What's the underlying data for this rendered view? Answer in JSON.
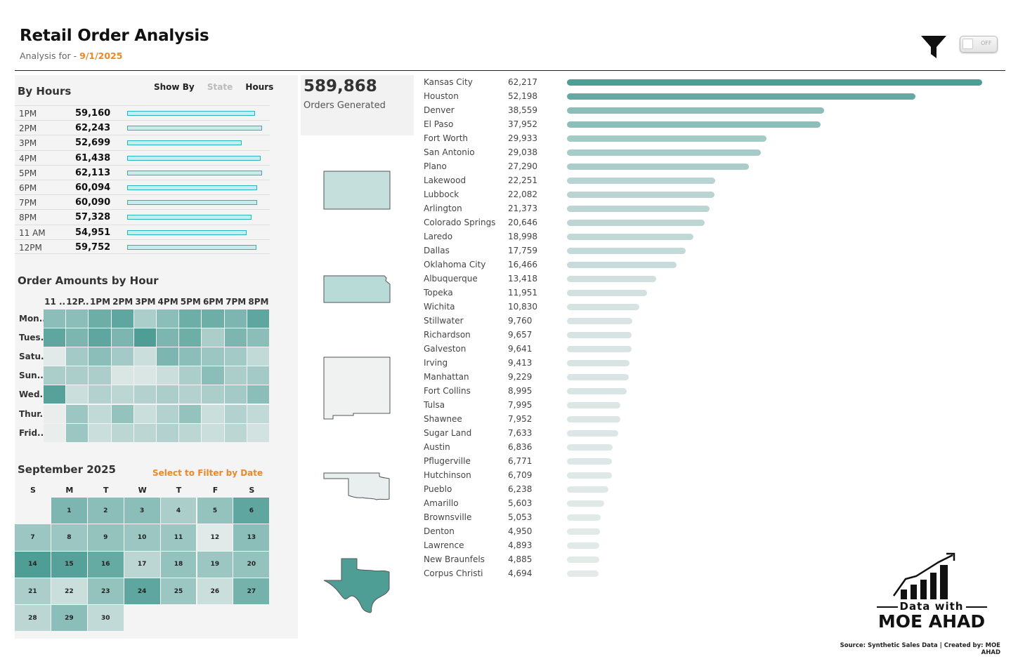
{
  "header": {
    "title": "Retail Order Analysis",
    "subtitle_prefix": "Analysis for - ",
    "date": "9/1/2025",
    "toggle_label": "OFF"
  },
  "colors": {
    "teal_dark": "#4e9e96",
    "accent_orange": "#e8892a"
  },
  "by_hours": {
    "title": "By Hours",
    "show_by_label": "Show By",
    "options": [
      "State",
      "Hours"
    ],
    "selected": "Hours",
    "max_value": 62243,
    "rows": [
      {
        "label": "1PM",
        "value": "59,160",
        "num": 59160
      },
      {
        "label": "2PM",
        "value": "62,243",
        "num": 62243
      },
      {
        "label": "3PM",
        "value": "52,699",
        "num": 52699
      },
      {
        "label": "4PM",
        "value": "61,438",
        "num": 61438
      },
      {
        "label": "5PM",
        "value": "62,113",
        "num": 62113
      },
      {
        "label": "6PM",
        "value": "60,094",
        "num": 60094
      },
      {
        "label": "7PM",
        "value": "60,090",
        "num": 60090
      },
      {
        "label": "8PM",
        "value": "57,328",
        "num": 57328
      },
      {
        "label": "11 AM",
        "value": "54,951",
        "num": 54951
      },
      {
        "label": "12PM",
        "value": "59,752",
        "num": 59752
      }
    ]
  },
  "heatmap": {
    "title": "Order Amounts by Hour",
    "columns": [
      "11 ..",
      "12P..",
      "1PM",
      "2PM",
      "3PM",
      "4PM",
      "5PM",
      "6PM",
      "7PM",
      "8PM"
    ],
    "rows": [
      "Mon..",
      "Tues..",
      "Satu..",
      "Sun..",
      "Wed..",
      "Thur..",
      "Frid.."
    ],
    "intensity": [
      [
        0.6,
        0.6,
        0.8,
        0.9,
        0.4,
        0.6,
        0.8,
        0.8,
        0.7,
        0.9
      ],
      [
        0.9,
        0.7,
        0.9,
        0.7,
        1.0,
        0.7,
        0.8,
        0.4,
        0.7,
        0.6
      ],
      [
        0.05,
        0.45,
        0.6,
        0.45,
        0.2,
        0.7,
        0.6,
        0.5,
        0.45,
        0.25
      ],
      [
        0.4,
        0.4,
        0.4,
        0.1,
        0.1,
        0.2,
        0.4,
        0.6,
        0.4,
        0.45
      ],
      [
        0.95,
        0.2,
        0.35,
        0.3,
        0.35,
        0.4,
        0.35,
        0.4,
        0.45,
        0.6
      ],
      [
        0.0,
        0.5,
        0.25,
        0.55,
        0.2,
        0.35,
        0.55,
        0.2,
        0.35,
        0.25
      ],
      [
        0.0,
        0.5,
        0.2,
        0.3,
        0.3,
        0.35,
        0.3,
        0.2,
        0.3,
        0.15
      ]
    ]
  },
  "calendar": {
    "title": "September 2025",
    "filter_hint": "Select to Filter by Date",
    "weekdays": [
      "S",
      "M",
      "T",
      "W",
      "T",
      "F",
      "S"
    ],
    "start_offset": 1,
    "days": [
      {
        "d": "1",
        "v": 0.7
      },
      {
        "d": "2",
        "v": 0.6
      },
      {
        "d": "3",
        "v": 0.6
      },
      {
        "d": "4",
        "v": 0.4
      },
      {
        "d": "5",
        "v": 0.55
      },
      {
        "d": "6",
        "v": 0.9
      },
      {
        "d": "7",
        "v": 0.5
      },
      {
        "d": "8",
        "v": 0.5
      },
      {
        "d": "9",
        "v": 0.55
      },
      {
        "d": "10",
        "v": 0.5
      },
      {
        "d": "11",
        "v": 0.5
      },
      {
        "d": "12",
        "v": 0.05
      },
      {
        "d": "13",
        "v": 0.6
      },
      {
        "d": "14",
        "v": 1.0
      },
      {
        "d": "15",
        "v": 0.95
      },
      {
        "d": "16",
        "v": 0.85
      },
      {
        "d": "17",
        "v": 0.3
      },
      {
        "d": "18",
        "v": 0.55
      },
      {
        "d": "19",
        "v": 0.5
      },
      {
        "d": "20",
        "v": 0.55
      },
      {
        "d": "21",
        "v": 0.4
      },
      {
        "d": "22",
        "v": 0.2
      },
      {
        "d": "23",
        "v": 0.55
      },
      {
        "d": "24",
        "v": 0.9
      },
      {
        "d": "25",
        "v": 0.5
      },
      {
        "d": "26",
        "v": 0.2
      },
      {
        "d": "27",
        "v": 0.75
      },
      {
        "d": "28",
        "v": 0.3
      },
      {
        "d": "29",
        "v": 0.6
      },
      {
        "d": "30",
        "v": 0.25
      }
    ]
  },
  "kpi": {
    "value": "589,868",
    "label": "Orders Generated"
  },
  "states": [
    "colorado",
    "kansas",
    "new-mexico",
    "oklahoma",
    "texas"
  ],
  "cities": {
    "max_value": 62217,
    "rows": [
      {
        "name": "Kansas City",
        "value": "62,217",
        "num": 62217
      },
      {
        "name": "Houston",
        "value": "52,198",
        "num": 52198
      },
      {
        "name": "Denver",
        "value": "38,559",
        "num": 38559
      },
      {
        "name": "El Paso",
        "value": "37,952",
        "num": 37952
      },
      {
        "name": "Fort Worth",
        "value": "29,933",
        "num": 29933
      },
      {
        "name": "San Antonio",
        "value": "29,038",
        "num": 29038
      },
      {
        "name": "Plano",
        "value": "27,290",
        "num": 27290
      },
      {
        "name": "Lakewood",
        "value": "22,251",
        "num": 22251
      },
      {
        "name": "Lubbock",
        "value": "22,082",
        "num": 22082
      },
      {
        "name": "Arlington",
        "value": "21,373",
        "num": 21373
      },
      {
        "name": "Colorado Springs",
        "value": "20,646",
        "num": 20646
      },
      {
        "name": "Laredo",
        "value": "18,998",
        "num": 18998
      },
      {
        "name": "Dallas",
        "value": "17,759",
        "num": 17759
      },
      {
        "name": "Oklahoma City",
        "value": "16,466",
        "num": 16466
      },
      {
        "name": "Albuquerque",
        "value": "13,418",
        "num": 13418
      },
      {
        "name": "Topeka",
        "value": "11,951",
        "num": 11951
      },
      {
        "name": "Wichita",
        "value": "10,830",
        "num": 10830
      },
      {
        "name": "Stillwater",
        "value": "9,760",
        "num": 9760
      },
      {
        "name": "Richardson",
        "value": "9,657",
        "num": 9657
      },
      {
        "name": "Galveston",
        "value": "9,641",
        "num": 9641
      },
      {
        "name": "Irving",
        "value": "9,413",
        "num": 9413
      },
      {
        "name": "Manhattan",
        "value": "9,229",
        "num": 9229
      },
      {
        "name": "Fort Collins",
        "value": "8,995",
        "num": 8995
      },
      {
        "name": "Tulsa",
        "value": "7,995",
        "num": 7995
      },
      {
        "name": "Shawnee",
        "value": "7,952",
        "num": 7952
      },
      {
        "name": "Sugar Land",
        "value": "7,633",
        "num": 7633
      },
      {
        "name": "Austin",
        "value": "6,836",
        "num": 6836
      },
      {
        "name": "Pflugerville",
        "value": "6,771",
        "num": 6771
      },
      {
        "name": "Hutchinson",
        "value": "6,709",
        "num": 6709
      },
      {
        "name": "Pueblo",
        "value": "6,238",
        "num": 6238
      },
      {
        "name": "Amarillo",
        "value": "5,603",
        "num": 5603
      },
      {
        "name": "Brownsville",
        "value": "5,053",
        "num": 5053
      },
      {
        "name": "Denton",
        "value": "4,950",
        "num": 4950
      },
      {
        "name": "Lawrence",
        "value": "4,893",
        "num": 4893
      },
      {
        "name": "New Braunfels",
        "value": "4,885",
        "num": 4885
      },
      {
        "name": "Corpus Christi",
        "value": "4,694",
        "num": 4694
      }
    ]
  },
  "logo": {
    "line1": "Data with",
    "line2": "MOE AHAD"
  },
  "footer": "Source: Synthetic Sales Data | Created by: MOE AHAD"
}
